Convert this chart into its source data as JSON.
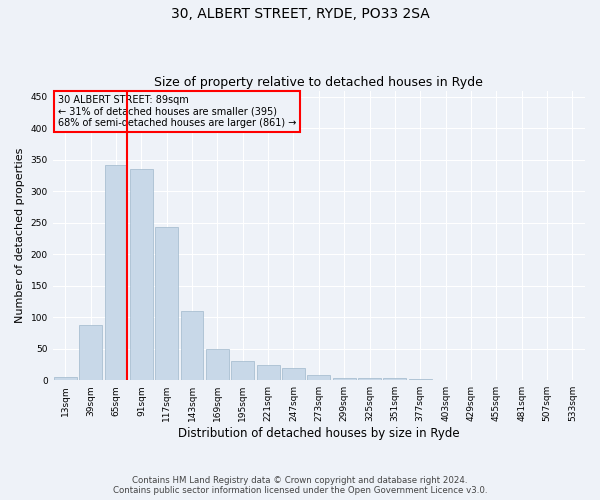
{
  "title1": "30, ALBERT STREET, RYDE, PO33 2SA",
  "title2": "Size of property relative to detached houses in Ryde",
  "xlabel": "Distribution of detached houses by size in Ryde",
  "ylabel": "Number of detached properties",
  "footer1": "Contains HM Land Registry data © Crown copyright and database right 2024.",
  "footer2": "Contains public sector information licensed under the Open Government Licence v3.0.",
  "annotation_line1": "30 ALBERT STREET: 89sqm",
  "annotation_line2": "← 31% of detached houses are smaller (395)",
  "annotation_line3": "68% of semi-detached houses are larger (861) →",
  "bar_color": "#c8d8e8",
  "bar_edge_color": "#a0b8cc",
  "red_line_x": 2.45,
  "categories": [
    "13sqm",
    "39sqm",
    "65sqm",
    "91sqm",
    "117sqm",
    "143sqm",
    "169sqm",
    "195sqm",
    "221sqm",
    "247sqm",
    "273sqm",
    "299sqm",
    "325sqm",
    "351sqm",
    "377sqm",
    "403sqm",
    "429sqm",
    "455sqm",
    "481sqm",
    "507sqm",
    "533sqm"
  ],
  "values": [
    5,
    88,
    342,
    335,
    244,
    110,
    50,
    31,
    24,
    19,
    9,
    4,
    3,
    4,
    2,
    1,
    0,
    0,
    1,
    0,
    1
  ],
  "ylim": [
    0,
    460
  ],
  "yticks": [
    0,
    50,
    100,
    150,
    200,
    250,
    300,
    350,
    400,
    450
  ],
  "background_color": "#eef2f8",
  "grid_color": "#ffffff",
  "figsize": [
    6.0,
    5.0
  ],
  "dpi": 100
}
